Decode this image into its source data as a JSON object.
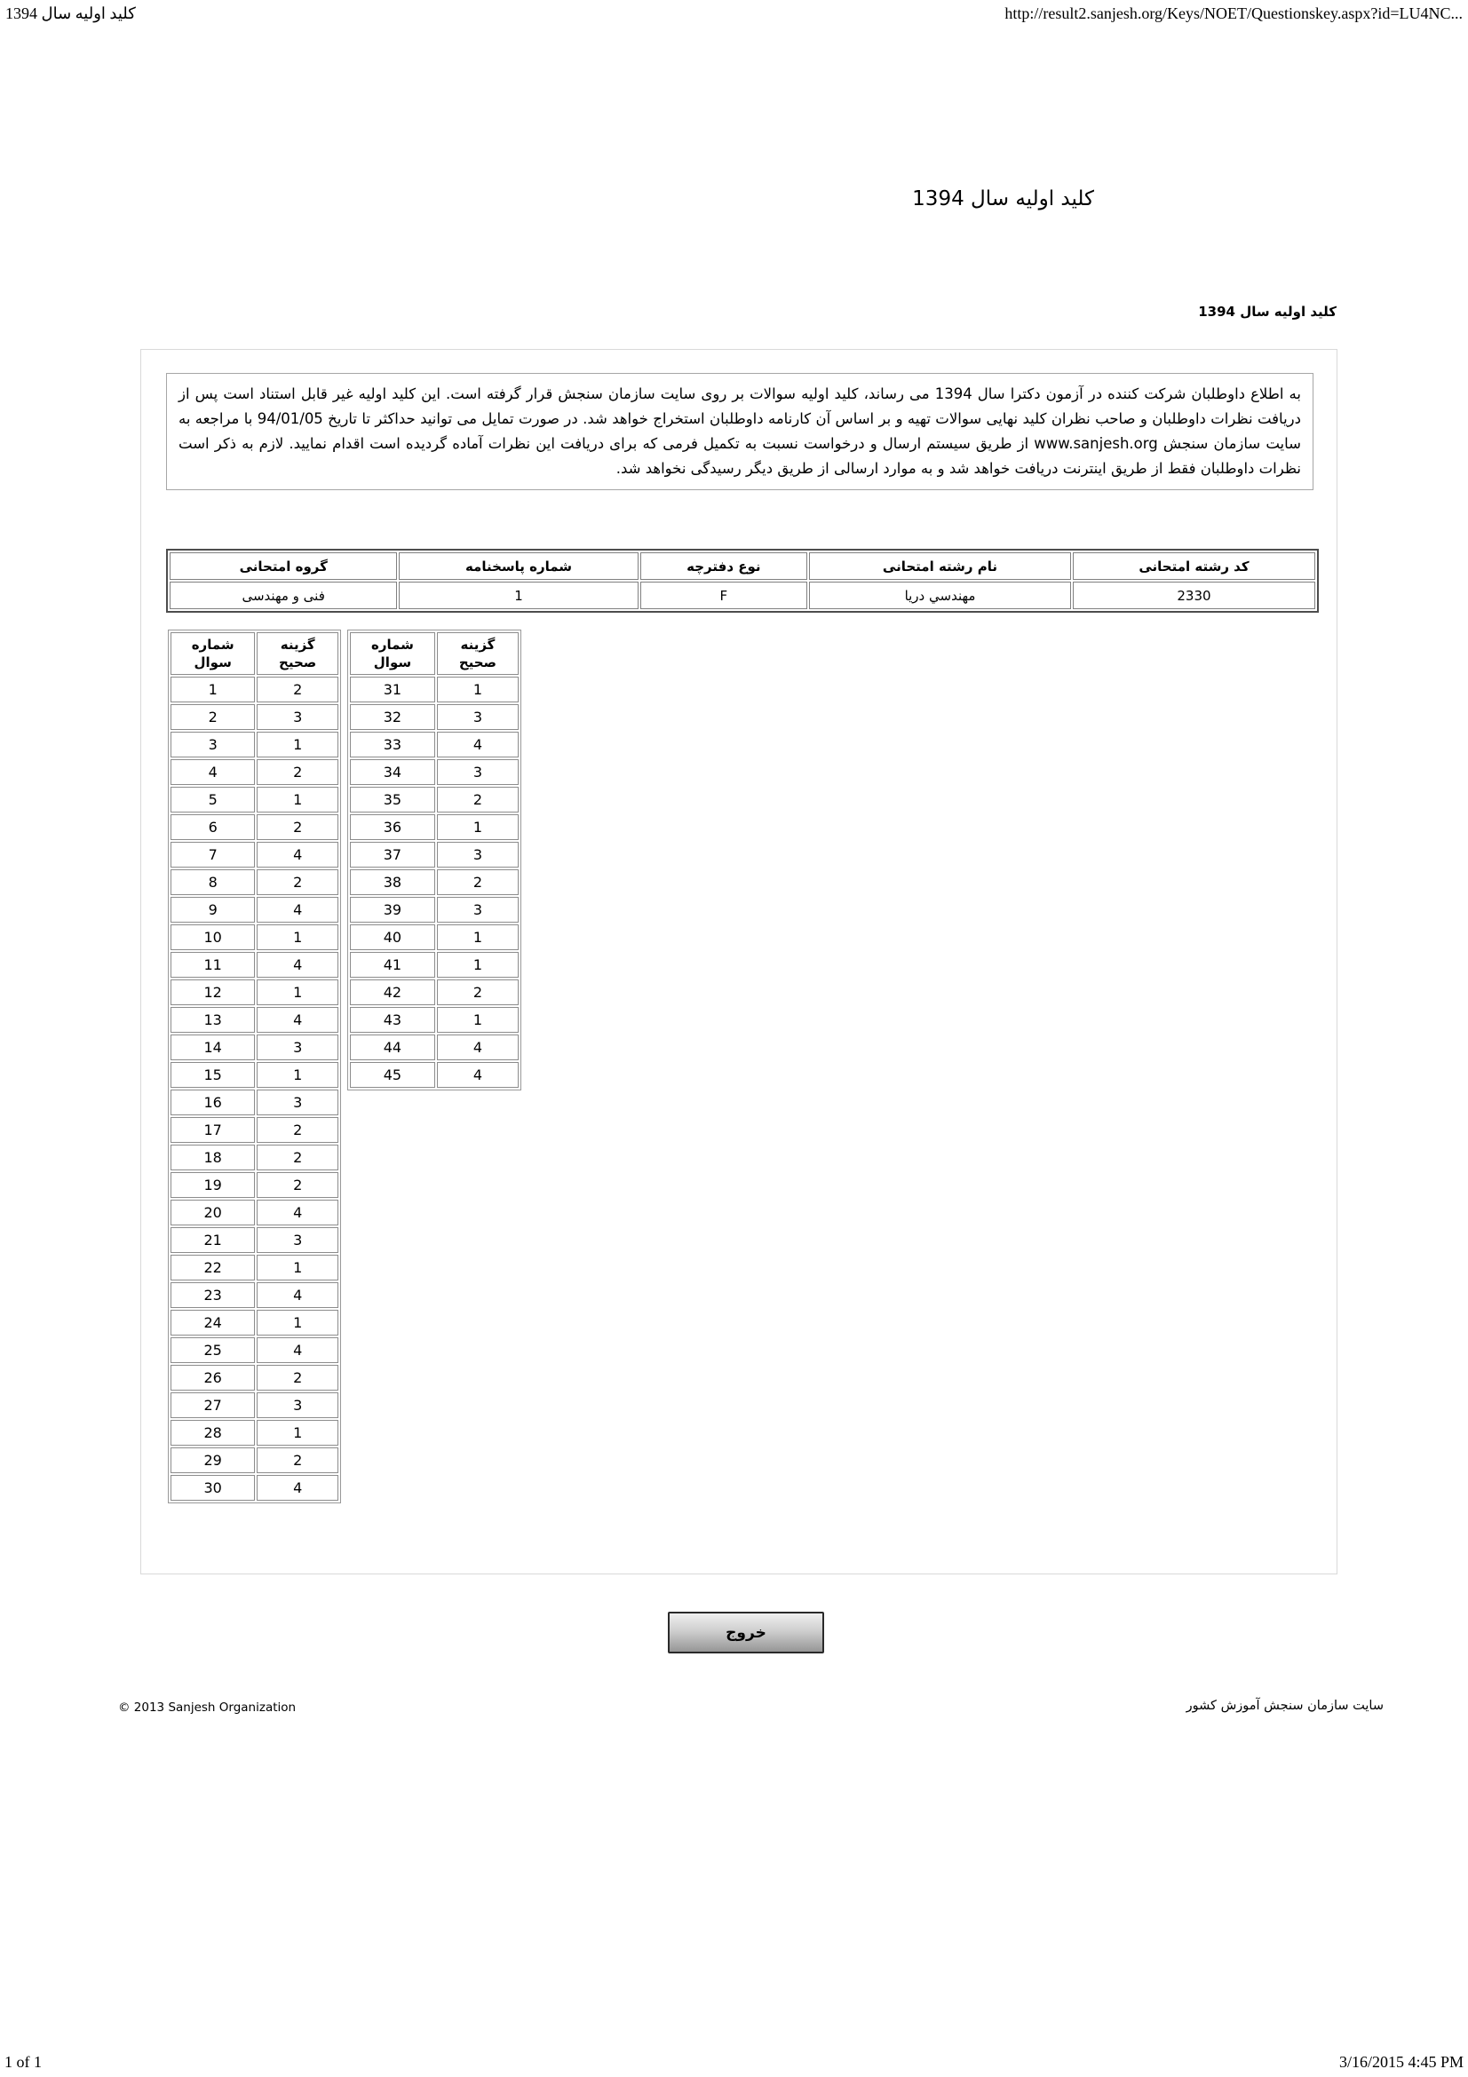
{
  "print_header": {
    "left": "کلید اولیه سال 1394",
    "right": "http://result2.sanjesh.org/Keys/NOET/Questionskey.aspx?id=LU4NC..."
  },
  "print_footer": {
    "left": "1 of 1",
    "right": "3/16/2015 4:45 PM"
  },
  "page": {
    "title": "کلید اولیه سال 1394",
    "section_label": "کلید اولیه سال 1394"
  },
  "notice": {
    "text": "به اطلاع داوطلبان شرکت کننده در آزمون دکترا سال 1394 می رساند، کلید اولیه سوالات بر روی سایت سازمان سنجش قرار گرفته است. این کلید اولیه غیر قابل استناد است پس از دریافت نظرات داوطلبان و صاحب نظران کلید نهایی سوالات تهیه و بر اساس آن کارنامه داوطلبان استخراج خواهد شد. در صورت تمایل می توانید حداکثر تا تاریخ 94/01/05 با مراجعه به سایت سازمان سنجش www.sanjesh.org از طریق سیستم ارسال و درخواست نسبت به تکمیل فرمی که برای دریافت این نظرات آماده گردیده است اقدام نمایید. لازم به ذکر است نظرات داوطلبان فقط از طریق اینترنت دریافت خواهد شد و به موارد ارسالی از طریق دیگر رسیدگی نخواهد شد."
  },
  "info_table": {
    "headers": [
      "گروه امتحانی",
      "شماره پاسخنامه",
      "نوع دفترچه",
      "نام رشته امتحانی",
      "کد رشته امتحانی"
    ],
    "row": [
      "فنی و مهندسی",
      "1",
      "F",
      "مهندسي دريا",
      "2330"
    ]
  },
  "answer_key": {
    "question_header": [
      "شماره",
      "سوال"
    ],
    "answer_header": [
      "گزینه",
      "صحیح"
    ],
    "table1": [
      [
        1,
        2
      ],
      [
        2,
        3
      ],
      [
        3,
        1
      ],
      [
        4,
        2
      ],
      [
        5,
        1
      ],
      [
        6,
        2
      ],
      [
        7,
        4
      ],
      [
        8,
        2
      ],
      [
        9,
        4
      ],
      [
        10,
        1
      ],
      [
        11,
        4
      ],
      [
        12,
        1
      ],
      [
        13,
        4
      ],
      [
        14,
        3
      ],
      [
        15,
        1
      ],
      [
        16,
        3
      ],
      [
        17,
        2
      ],
      [
        18,
        2
      ],
      [
        19,
        2
      ],
      [
        20,
        4
      ],
      [
        21,
        3
      ],
      [
        22,
        1
      ],
      [
        23,
        4
      ],
      [
        24,
        1
      ],
      [
        25,
        4
      ],
      [
        26,
        2
      ],
      [
        27,
        3
      ],
      [
        28,
        1
      ],
      [
        29,
        2
      ],
      [
        30,
        4
      ]
    ],
    "table2": [
      [
        31,
        1
      ],
      [
        32,
        3
      ],
      [
        33,
        4
      ],
      [
        34,
        3
      ],
      [
        35,
        2
      ],
      [
        36,
        1
      ],
      [
        37,
        3
      ],
      [
        38,
        2
      ],
      [
        39,
        3
      ],
      [
        40,
        1
      ],
      [
        41,
        1
      ],
      [
        42,
        2
      ],
      [
        43,
        1
      ],
      [
        44,
        4
      ],
      [
        45,
        4
      ]
    ]
  },
  "exit_button": {
    "label": "خروج"
  },
  "footer": {
    "left": "© 2013 Sanjesh Organization",
    "right": "سایت سازمان سنجش آموزش کشور"
  },
  "colors": {
    "button_border": "#2a2a2a",
    "button_gradient_top": "#efefef",
    "button_gradient_bottom": "#969696",
    "table_border": "#808080",
    "outer_box_border": "#d9d9d9"
  }
}
